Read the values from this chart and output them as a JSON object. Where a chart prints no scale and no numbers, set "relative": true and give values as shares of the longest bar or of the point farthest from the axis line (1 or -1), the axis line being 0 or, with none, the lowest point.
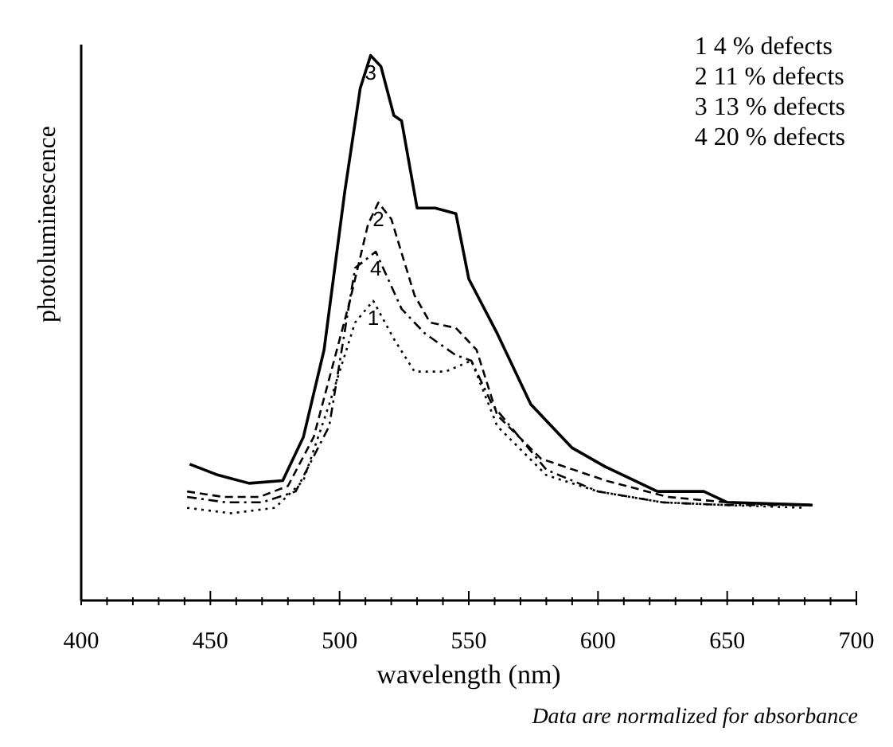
{
  "chart_data": {
    "type": "line",
    "relative": true,
    "xlabel": "wavelength (nm)",
    "ylabel": "photoluminescence",
    "annotations": [
      "1 4 % defects",
      "2 11 % defects",
      "3 13 % defects",
      "4 20 % defects",
      "Data are normalized for absorbance"
    ],
    "xlim": [
      400,
      700
    ],
    "xticks": [
      400,
      {
        "value": 410,
        "label": null
      },
      {
        "value": 420,
        "label": null
      },
      {
        "value": 430,
        "label": null
      },
      {
        "value": 440,
        "label": null
      },
      450,
      {
        "value": 460,
        "label": null
      },
      {
        "value": 470,
        "label": null
      },
      {
        "value": 480,
        "label": null
      },
      {
        "value": 490,
        "label": null
      },
      500,
      {
        "value": 510,
        "label": null
      },
      {
        "value": 520,
        "label": null
      },
      {
        "value": 530,
        "label": null
      },
      {
        "value": 540,
        "label": null
      },
      550,
      {
        "value": 560,
        "label": null
      },
      {
        "value": 570,
        "label": null
      },
      {
        "value": 580,
        "label": null
      },
      {
        "value": 590,
        "label": null
      },
      600,
      {
        "value": 610,
        "label": null
      },
      {
        "value": 620,
        "label": null
      },
      {
        "value": 630,
        "label": null
      },
      {
        "value": 640,
        "label": null
      },
      650,
      {
        "value": 660,
        "label": null
      },
      {
        "value": 670,
        "label": null
      },
      {
        "value": 680,
        "label": null
      },
      {
        "value": 690,
        "label": null
      },
      700
    ],
    "grid": false,
    "marker": "none",
    "series": [
      {
        "name": "1",
        "color": "#000000",
        "line_style": "dotted",
        "x": [
          441,
          458,
          475,
          486,
          496,
          506,
          513,
          521,
          529,
          541,
          551,
          561,
          580,
          600,
          625,
          650,
          680
        ],
        "values": [
          0.17,
          0.16,
          0.17,
          0.22,
          0.36,
          0.51,
          0.55,
          0.48,
          0.42,
          0.42,
          0.44,
          0.32,
          0.23,
          0.2,
          0.18,
          0.175,
          0.17
        ]
      },
      {
        "name": "2",
        "color": "#000000",
        "line_style": "dashed",
        "x": [
          441,
          455,
          469,
          480,
          490,
          504,
          511,
          515,
          520,
          529,
          535,
          545,
          553,
          561,
          578,
          603,
          627,
          650,
          683
        ],
        "values": [
          0.2,
          0.19,
          0.19,
          0.21,
          0.3,
          0.55,
          0.69,
          0.73,
          0.7,
          0.56,
          0.51,
          0.5,
          0.46,
          0.34,
          0.26,
          0.22,
          0.19,
          0.18,
          0.175
        ]
      },
      {
        "name": "3",
        "color": "#000000",
        "line_style": "solid",
        "x": [
          442,
          453,
          465,
          478,
          486,
          494,
          502,
          508,
          512,
          516,
          521,
          524,
          530,
          537,
          545,
          550,
          561,
          574,
          590,
          603,
          623,
          641,
          650,
          683
        ],
        "values": [
          0.25,
          0.23,
          0.215,
          0.22,
          0.3,
          0.46,
          0.75,
          0.94,
          1.0,
          0.98,
          0.89,
          0.88,
          0.72,
          0.72,
          0.71,
          0.59,
          0.49,
          0.36,
          0.28,
          0.245,
          0.2,
          0.2,
          0.18,
          0.175
        ]
      },
      {
        "name": "4",
        "color": "#000000",
        "line_style": "dashdot",
        "x": [
          441,
          456,
          470,
          483,
          496,
          506,
          514,
          524,
          533,
          545,
          551,
          559,
          580,
          600,
          625,
          650,
          680
        ],
        "values": [
          0.19,
          0.18,
          0.18,
          0.2,
          0.32,
          0.61,
          0.64,
          0.535,
          0.49,
          0.45,
          0.44,
          0.36,
          0.24,
          0.2,
          0.18,
          0.175,
          0.175
        ]
      }
    ]
  }
}
